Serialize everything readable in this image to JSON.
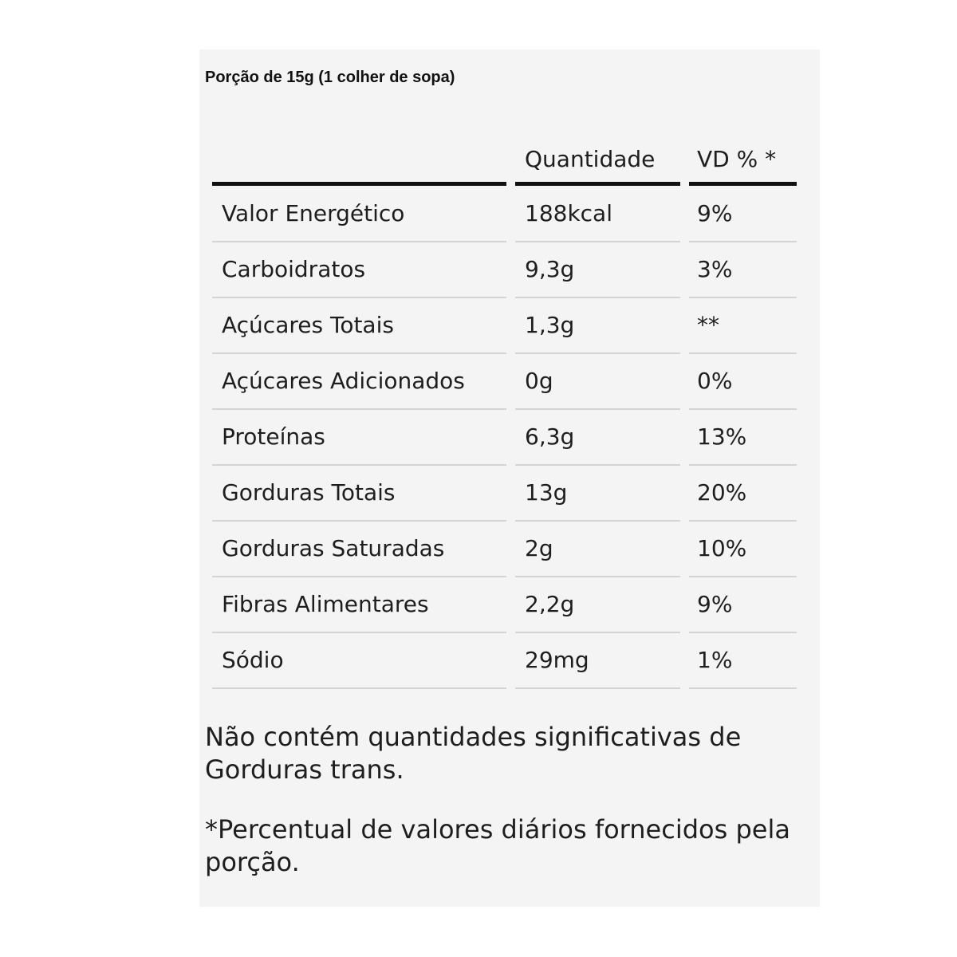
{
  "portion": "Porção de 15g (1 colher de sopa)",
  "headers": {
    "nutrient": "",
    "quantity": "Quantidade",
    "dv": "VD % *"
  },
  "rows": [
    {
      "nutrient": "Valor Energético",
      "quantity": "188kcal",
      "dv": "9%"
    },
    {
      "nutrient": "Carboidratos",
      "quantity": "9,3g",
      "dv": "3%"
    },
    {
      "nutrient": "Açúcares Totais",
      "quantity": "1,3g",
      "dv": "**"
    },
    {
      "nutrient": "Açúcares Adicionados",
      "quantity": "0g",
      "dv": "0%"
    },
    {
      "nutrient": "Proteínas",
      "quantity": "6,3g",
      "dv": "13%"
    },
    {
      "nutrient": "Gorduras Totais",
      "quantity": "13g",
      "dv": "20%"
    },
    {
      "nutrient": "Gorduras Saturadas",
      "quantity": "2g",
      "dv": "10%"
    },
    {
      "nutrient": "Fibras Alimentares",
      "quantity": "2,2g",
      "dv": "9%"
    },
    {
      "nutrient": "Sódio",
      "quantity": "29mg",
      "dv": "1%"
    }
  ],
  "notes": {
    "trans_fat": "Não contém quantidades significativas de Gorduras trans.",
    "dv_footnote": "*Percentual de valores diários fornecidos pela porção."
  }
}
